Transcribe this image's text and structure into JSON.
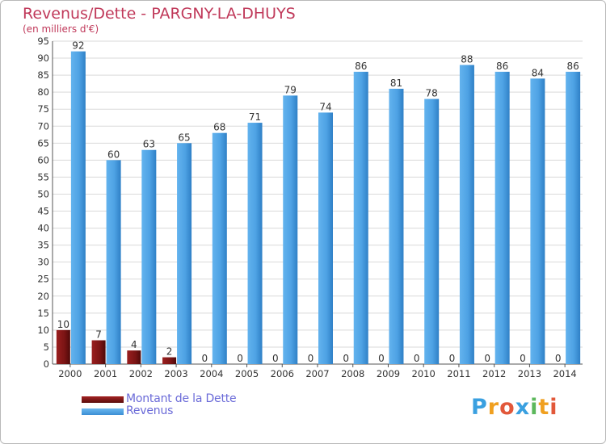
{
  "chart_data": {
    "type": "bar",
    "title": "Revenus/Dette - PARGNY-LA-DHUYS",
    "subtitle": "(en milliers d'€)",
    "categories": [
      "2000",
      "2001",
      "2002",
      "2003",
      "2004",
      "2005",
      "2006",
      "2007",
      "2008",
      "2009",
      "2010",
      "2011",
      "2012",
      "2013",
      "2014"
    ],
    "series": [
      {
        "name": "Montant de la Dette",
        "color": "#7a1414",
        "values": [
          10,
          7,
          4,
          2,
          0,
          0,
          0,
          0,
          0,
          0,
          0,
          0,
          0,
          0,
          0
        ]
      },
      {
        "name": "Revenus",
        "color": "#4da3e6",
        "values": [
          92,
          60,
          63,
          65,
          68,
          71,
          79,
          74,
          86,
          81,
          78,
          88,
          86,
          84,
          86
        ]
      }
    ],
    "yticks": [
      0,
      5,
      10,
      15,
      20,
      25,
      30,
      35,
      40,
      45,
      50,
      55,
      60,
      65,
      70,
      75,
      80,
      85,
      90,
      95
    ],
    "yscale_top": 95,
    "ylim": [
      0,
      95
    ],
    "grid": true
  },
  "legend": {
    "debt_label": "Montant de la Dette",
    "revenue_label": "Revenus"
  },
  "logo": {
    "letters": [
      "P",
      "r",
      "o",
      "x",
      "i",
      "t",
      "i"
    ],
    "colors": [
      "#3aa0e0",
      "#f0a020",
      "#e2583a",
      "#3aa0e0",
      "#5cb85c",
      "#f0a020",
      "#e2583a"
    ]
  }
}
